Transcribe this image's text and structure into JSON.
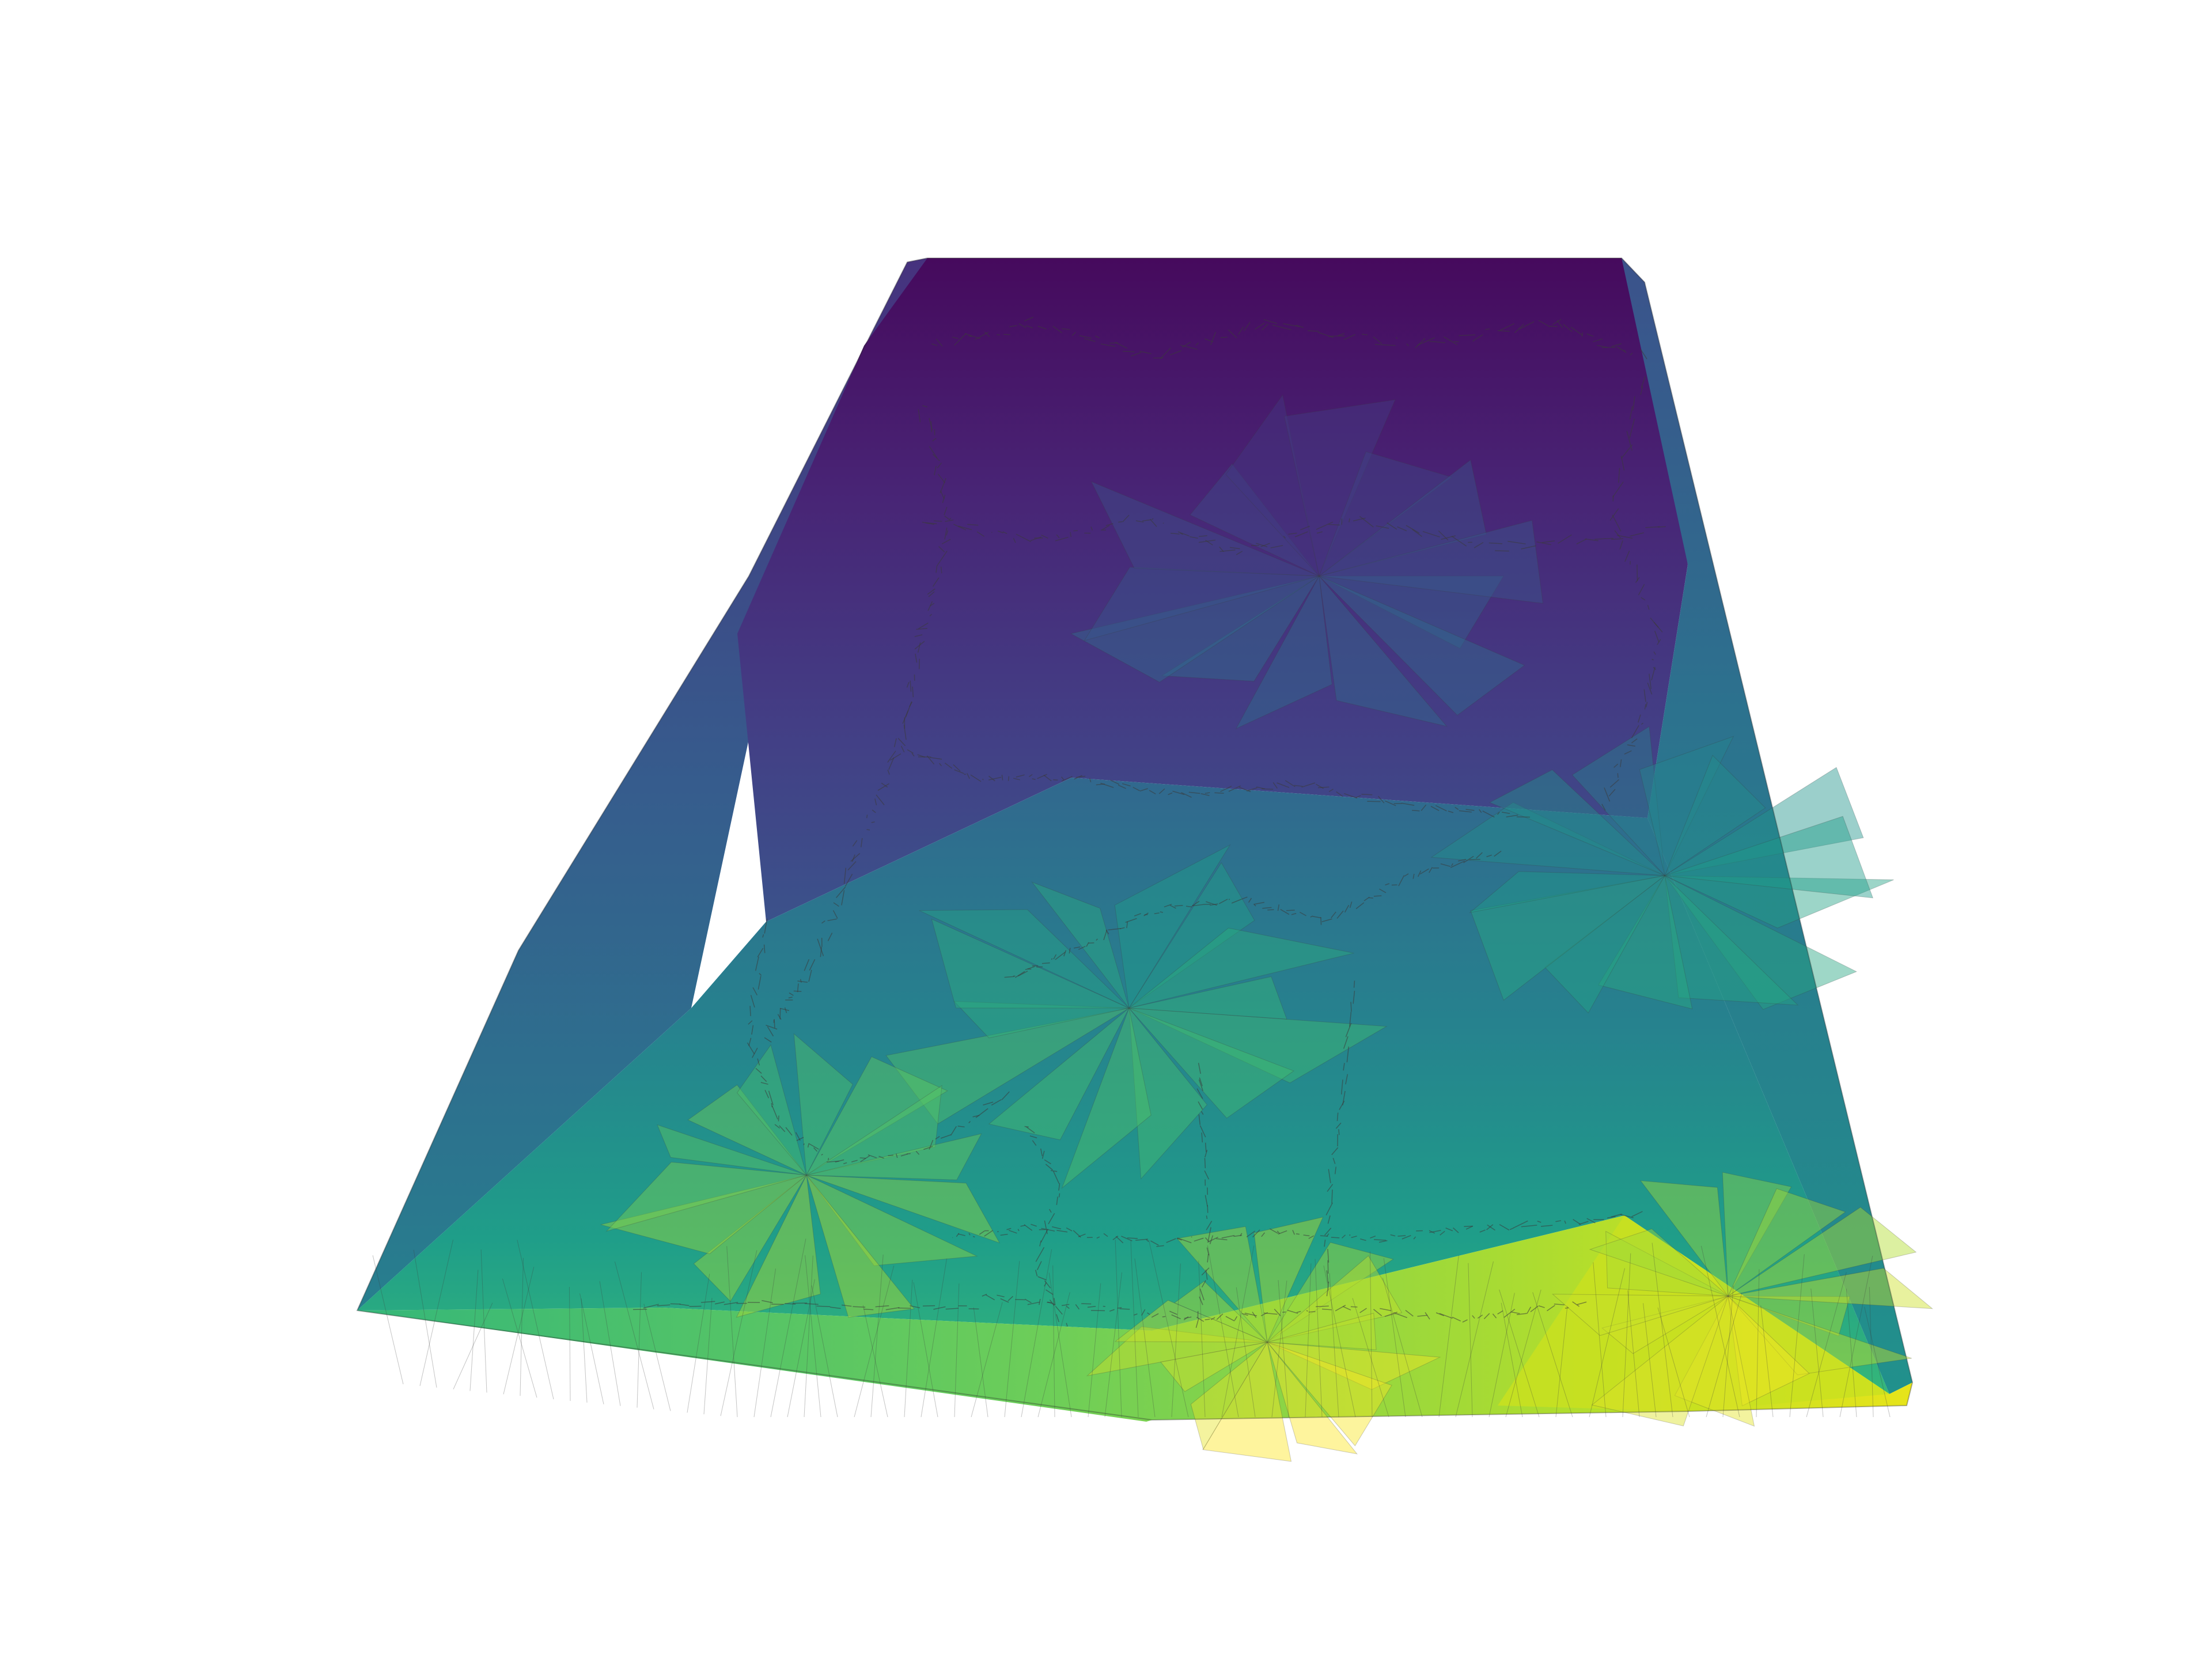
{
  "figure": {
    "kind": "3d-triangulated-surface",
    "colormap": "viridis",
    "colormap_stops": [
      "#440154",
      "#482878",
      "#3e4989",
      "#31688e",
      "#26828e",
      "#1f9e89",
      "#35b779",
      "#6ece58",
      "#b5de2b",
      "#fde725"
    ],
    "edge_color": "#3a3a3a",
    "background": "#ffffff",
    "axes_visible": false
  }
}
